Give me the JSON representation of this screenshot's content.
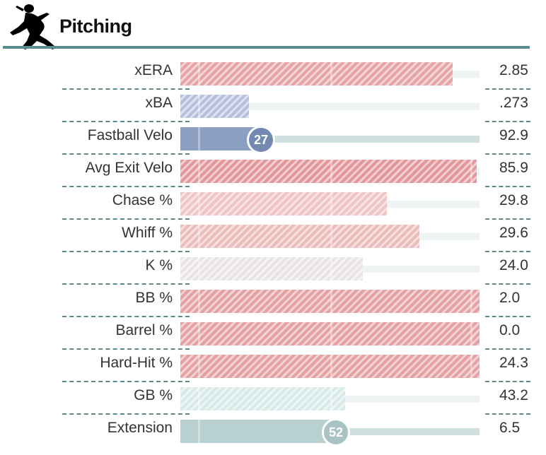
{
  "header": {
    "title": "Pitching",
    "icon": "pitcher-icon"
  },
  "rows": [
    {
      "label": "xERA",
      "value": "2.85",
      "percent": 91,
      "style": "hatch",
      "color": "#e6a3a5"
    },
    {
      "label": "xBA",
      "value": ".273",
      "percent": 23,
      "style": "hatch",
      "color": "#b7bfdf"
    },
    {
      "label": "Fastball Velo",
      "value": "92.9",
      "percent": 27,
      "style": "solid",
      "color": "#8b9fc2",
      "badge": "27",
      "track_color": "#d0dfe0"
    },
    {
      "label": "Avg Exit Velo",
      "value": "85.9",
      "percent": 99,
      "style": "hatch",
      "color": "#e3979a"
    },
    {
      "label": "Chase %",
      "value": "29.8",
      "percent": 69,
      "style": "hatch",
      "color": "#efc4c2"
    },
    {
      "label": "Whiff %",
      "value": "29.6",
      "percent": 80,
      "style": "hatch",
      "color": "#ecbcba"
    },
    {
      "label": "K %",
      "value": "24.0",
      "percent": 61,
      "style": "hatch",
      "color": "#e9e4e4"
    },
    {
      "label": "BB %",
      "value": "2.0",
      "percent": 100,
      "style": "hatch",
      "color": "#e5a0a2"
    },
    {
      "label": "Barrel %",
      "value": "0.0",
      "percent": 100,
      "style": "hatch",
      "color": "#e5a0a2"
    },
    {
      "label": "Hard-Hit %",
      "value": "24.3",
      "percent": 100,
      "style": "hatch",
      "color": "#e5a0a2"
    },
    {
      "label": "GB %",
      "value": "43.2",
      "percent": 55,
      "style": "hatch",
      "color": "#d7e9e8"
    },
    {
      "label": "Extension",
      "value": "6.5",
      "percent": 52,
      "style": "solid",
      "color": "#b9d0d1",
      "badge": "52",
      "track_color": "#d0dfe0"
    }
  ]
}
